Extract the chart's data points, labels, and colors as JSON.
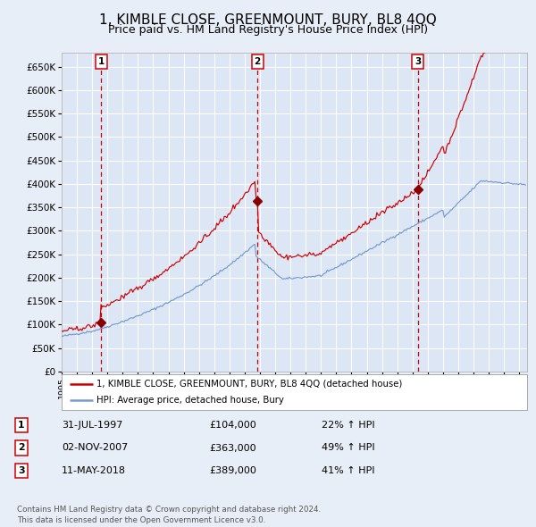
{
  "title": "1, KIMBLE CLOSE, GREENMOUNT, BURY, BL8 4QQ",
  "subtitle": "Price paid vs. HM Land Registry's House Price Index (HPI)",
  "title_fontsize": 11,
  "subtitle_fontsize": 9,
  "background_color": "#e8eef7",
  "plot_bg_color": "#dce6f4",
  "grid_color": "#ffffff",
  "red_line_color": "#cc0000",
  "blue_line_color": "#7799cc",
  "sale_marker_color": "#880000",
  "vline_color": "#cc0000",
  "ylim": [
    0,
    680000
  ],
  "yticks": [
    0,
    50000,
    100000,
    150000,
    200000,
    250000,
    300000,
    350000,
    400000,
    450000,
    500000,
    550000,
    600000,
    650000
  ],
  "xlim_start": 1995.0,
  "xlim_end": 2025.5,
  "sales": [
    {
      "num": 1,
      "date": "31-JUL-1997",
      "price": 104000,
      "pct": "22%",
      "x": 1997.58
    },
    {
      "num": 2,
      "date": "02-NOV-2007",
      "price": 363000,
      "pct": "49%",
      "x": 2007.84
    },
    {
      "num": 3,
      "date": "11-MAY-2018",
      "price": 389000,
      "pct": "41%",
      "x": 2018.36
    }
  ],
  "legend_label_red": "1, KIMBLE CLOSE, GREENMOUNT, BURY, BL8 4QQ (detached house)",
  "legend_label_blue": "HPI: Average price, detached house, Bury",
  "footnote": "Contains HM Land Registry data © Crown copyright and database right 2024.\nThis data is licensed under the Open Government Licence v3.0."
}
